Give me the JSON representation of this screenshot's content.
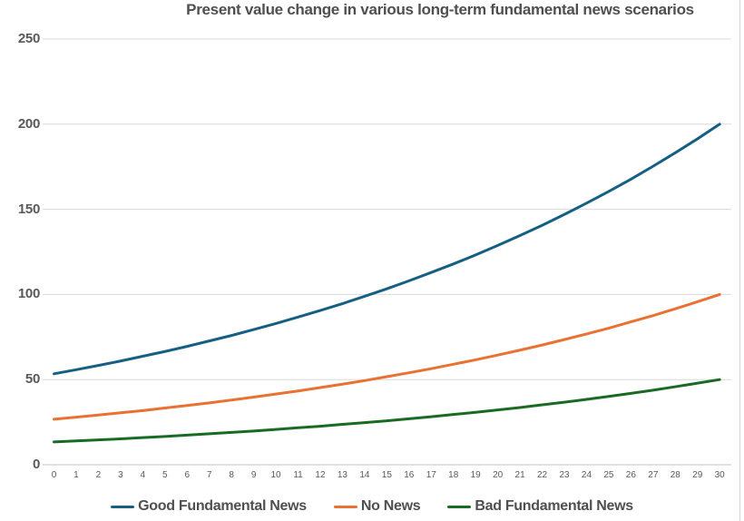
{
  "colors": {
    "accent_blue": "#156082",
    "accent_orange": "#E97132",
    "accent_green": "#196B24",
    "title_text": "#4f4f4f",
    "axis_text": "#595959",
    "gridline": "#d9d9d9",
    "axis_line": "#c2c2c2",
    "right_border": "#d5d5d5"
  },
  "chart_data": {
    "type": "line",
    "title": "Present value change in various long-term fundamental news scenarios",
    "x": [
      0,
      1,
      2,
      3,
      4,
      5,
      6,
      7,
      8,
      9,
      10,
      11,
      12,
      13,
      14,
      15,
      16,
      17,
      18,
      19,
      20,
      21,
      22,
      23,
      24,
      25,
      26,
      27,
      28,
      29,
      30
    ],
    "series": [
      {
        "name": "Good Fundamental News",
        "color": "#156082",
        "values": [
          53.4,
          55.8,
          58.3,
          60.9,
          63.7,
          66.5,
          69.5,
          72.7,
          75.9,
          79.4,
          82.9,
          86.7,
          90.6,
          94.6,
          98.9,
          103.3,
          108.0,
          112.9,
          117.9,
          123.2,
          128.8,
          134.6,
          140.6,
          147.0,
          153.6,
          160.5,
          167.7,
          175.3,
          183.2,
          191.4,
          200.0
        ]
      },
      {
        "name": "No News",
        "color": "#E97132",
        "values": [
          26.7,
          27.9,
          29.2,
          30.5,
          31.8,
          33.3,
          34.8,
          36.3,
          38.0,
          39.7,
          41.5,
          43.3,
          45.3,
          47.3,
          49.4,
          51.7,
          54.0,
          56.4,
          59.0,
          61.6,
          64.4,
          67.3,
          70.3,
          73.5,
          76.8,
          80.2,
          83.9,
          87.6,
          91.6,
          95.7,
          100.0
        ]
      },
      {
        "name": "Bad Fundamental News",
        "color": "#196B24",
        "values": [
          13.4,
          14.0,
          14.6,
          15.2,
          15.9,
          16.6,
          17.4,
          18.2,
          19.0,
          19.8,
          20.7,
          21.7,
          22.6,
          23.7,
          24.7,
          25.8,
          27.0,
          28.2,
          29.5,
          30.8,
          32.2,
          33.6,
          35.2,
          36.7,
          38.4,
          40.1,
          41.9,
          43.8,
          45.8,
          47.9,
          50.0
        ]
      }
    ],
    "ylim": [
      0,
      250
    ],
    "yticks": [
      0,
      50,
      100,
      150,
      200,
      250
    ],
    "grid": true,
    "legend_position": "bottom"
  }
}
